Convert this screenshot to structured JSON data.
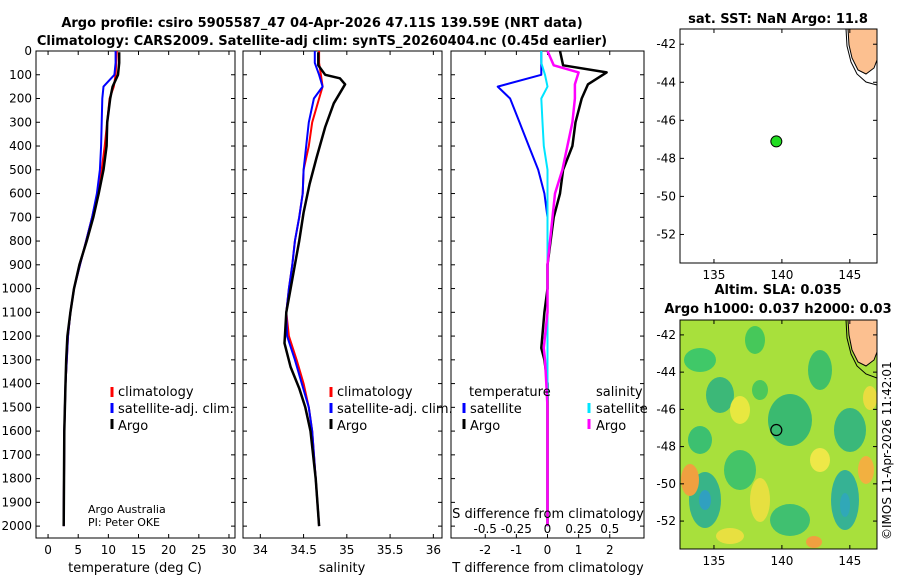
{
  "title_line1": "Argo profile: csiro 5905587_47 04-Apr-2026 47.11S 139.59E (NRT data)",
  "title_line2": "Climatology: CARS2009. Satellite-adj clim: synTS_20260404.nc (0.45d earlier)",
  "credit_line1": "Argo Australia",
  "credit_line2": "PI: Peter OKE",
  "watermark": "©IMOS 11-Apr-2026 11:42:01",
  "colors": {
    "climatology": "#ff0000",
    "satellite": "#0000ff",
    "argo": "#000000",
    "salinity_sat": "#00e5ff",
    "salinity_argo": "#ff00ff"
  },
  "chart_data": [
    {
      "type": "line",
      "id": "temperature",
      "xlabel": "temperature (deg C)",
      "ylabel": "",
      "xlim": [
        -2,
        31
      ],
      "ylim": [
        2050,
        0
      ],
      "xticks": [
        0,
        5,
        10,
        15,
        20,
        25,
        30
      ],
      "yticks": [
        0,
        100,
        200,
        300,
        400,
        500,
        600,
        700,
        800,
        900,
        1000,
        1100,
        1200,
        1300,
        1400,
        1500,
        1600,
        1700,
        1800,
        1900,
        2000
      ],
      "legend": [
        "climatology",
        "satellite-adj. clim.",
        "Argo"
      ],
      "series": [
        {
          "name": "climatology",
          "color": "#ff0000",
          "x": [
            11.4,
            11.3,
            11.2,
            10.9,
            10.2,
            9.8,
            9.4,
            8.9,
            8.2,
            7.3,
            6.3,
            5.3,
            4.3,
            3.7,
            3.3,
            3.1,
            2.9,
            2.8,
            2.7,
            2.65,
            2.6
          ],
          "y": [
            0,
            50,
            100,
            150,
            200,
            300,
            400,
            500,
            600,
            700,
            800,
            900,
            1000,
            1100,
            1200,
            1300,
            1400,
            1500,
            1600,
            1800,
            2000
          ]
        },
        {
          "name": "satellite-adj. clim.",
          "color": "#0000ff",
          "x": [
            11.2,
            11.2,
            11.0,
            9.2,
            9.0,
            8.9,
            8.8,
            8.6,
            8.1,
            7.3,
            6.3,
            5.3,
            4.3,
            3.7,
            3.3,
            3.1,
            2.9,
            2.8,
            2.7,
            2.65,
            2.6
          ],
          "y": [
            0,
            50,
            100,
            150,
            200,
            300,
            400,
            500,
            600,
            700,
            800,
            900,
            1000,
            1100,
            1200,
            1300,
            1400,
            1500,
            1600,
            1800,
            2000
          ]
        },
        {
          "name": "Argo",
          "color": "#000000",
          "x": [
            11.8,
            11.8,
            11.6,
            10.7,
            10.3,
            9.8,
            9.7,
            9.2,
            8.4,
            7.5,
            6.4,
            5.2,
            4.3,
            3.7,
            3.2,
            3.0,
            2.9,
            2.8,
            2.7,
            2.65,
            2.6
          ],
          "y": [
            5,
            50,
            100,
            150,
            200,
            300,
            400,
            500,
            600,
            700,
            800,
            900,
            1000,
            1100,
            1200,
            1300,
            1400,
            1500,
            1600,
            1800,
            2000
          ]
        }
      ]
    },
    {
      "type": "line",
      "id": "salinity",
      "xlabel": "salinity",
      "xlim": [
        33.8,
        36.1
      ],
      "ylim": [
        2050,
        0
      ],
      "xticks": [
        34,
        34.5,
        35,
        35.5,
        36
      ],
      "xticklabels": [
        "34",
        "34.5",
        "35",
        "35.5",
        "36"
      ],
      "legend": [
        "climatology",
        "satellite-adj. clim.",
        "Argo"
      ],
      "series": [
        {
          "name": "climatology",
          "color": "#ff0000",
          "x": [
            34.68,
            34.68,
            34.7,
            34.72,
            34.68,
            34.6,
            34.56,
            34.5,
            34.49,
            34.45,
            34.4,
            34.37,
            34.33,
            34.3,
            34.33,
            34.42,
            34.5,
            34.56,
            34.6,
            34.64,
            34.68
          ],
          "y": [
            0,
            50,
            100,
            150,
            200,
            300,
            400,
            500,
            600,
            700,
            800,
            900,
            1000,
            1100,
            1200,
            1300,
            1400,
            1500,
            1600,
            1800,
            2000
          ]
        },
        {
          "name": "satellite-adj. clim.",
          "color": "#0000ff",
          "x": [
            34.63,
            34.63,
            34.68,
            34.72,
            34.62,
            34.56,
            34.53,
            34.5,
            34.49,
            34.45,
            34.4,
            34.37,
            34.33,
            34.3,
            34.31,
            34.4,
            34.48,
            34.56,
            34.6,
            34.64,
            34.68
          ],
          "y": [
            0,
            50,
            100,
            150,
            200,
            300,
            400,
            500,
            600,
            700,
            800,
            900,
            1000,
            1100,
            1200,
            1300,
            1400,
            1500,
            1600,
            1800,
            2000
          ]
        },
        {
          "name": "Argo",
          "color": "#000000",
          "x": [
            34.67,
            34.67,
            34.75,
            34.92,
            34.98,
            34.85,
            34.75,
            34.65,
            34.57,
            34.5,
            34.45,
            34.4,
            34.35,
            34.3,
            34.28,
            34.35,
            34.45,
            34.52,
            34.58,
            34.64,
            34.68
          ],
          "y": [
            5,
            60,
            100,
            115,
            140,
            220,
            320,
            450,
            560,
            680,
            800,
            900,
            1000,
            1100,
            1230,
            1330,
            1420,
            1500,
            1600,
            1800,
            2000
          ]
        }
      ]
    },
    {
      "type": "line",
      "id": "difference",
      "xlabel": "T difference from climatology",
      "xlabel_top": "S difference from climatology",
      "xlim": [
        -3.1,
        3.1
      ],
      "ylim": [
        2050,
        0
      ],
      "xticks": [
        -2,
        -1,
        0,
        1,
        2
      ],
      "xticklabels": [
        "-2",
        "-1",
        "0",
        "1",
        "2"
      ],
      "secondary_ticklabels": [
        "-0.5",
        "-0.25",
        "0",
        "0.25",
        "0.5"
      ],
      "legend_temperature_title": "temperature",
      "legend_salinity_title": "salinity",
      "legend_temperature": [
        "satellite",
        "Argo"
      ],
      "legend_salinity": [
        "satellite",
        "Argo"
      ],
      "series": [
        {
          "name": "T satellite",
          "color": "#0000ff",
          "x": [
            -0.2,
            -0.2,
            -0.2,
            -1.6,
            -1.2,
            -0.9,
            -0.6,
            -0.3,
            -0.1,
            0.0,
            0.0,
            0.0,
            0.0,
            0.0,
            0.0,
            0.0,
            0.0,
            0.0,
            0.0,
            0.0,
            0.0
          ],
          "y": [
            0,
            50,
            100,
            150,
            200,
            300,
            400,
            500,
            600,
            700,
            800,
            900,
            1000,
            1100,
            1200,
            1300,
            1400,
            1500,
            1600,
            1800,
            2000
          ]
        },
        {
          "name": "T Argo",
          "color": "#000000",
          "x": [
            0.4,
            0.5,
            1.9,
            1.3,
            1.1,
            0.9,
            0.8,
            0.5,
            0.4,
            0.2,
            0.1,
            0.0,
            0.0,
            -0.1,
            -0.2,
            -0.1,
            0.0,
            0.0,
            0.0,
            0.0,
            0.0
          ],
          "y": [
            0,
            60,
            90,
            140,
            200,
            300,
            400,
            500,
            600,
            700,
            800,
            900,
            1000,
            1100,
            1250,
            1300,
            1400,
            1500,
            1600,
            1800,
            2000
          ]
        },
        {
          "name": "S satellite",
          "color": "#00e5ff",
          "x": [
            -0.05,
            -0.05,
            -0.02,
            0.0,
            -0.05,
            -0.04,
            -0.03,
            0.0,
            0.0,
            0.0,
            0.0,
            0.0,
            0.0,
            0.0,
            0.0,
            0.0,
            0.0,
            0.0,
            0.0,
            0.0,
            0.0
          ],
          "y": [
            0,
            50,
            100,
            150,
            200,
            300,
            400,
            500,
            600,
            700,
            800,
            900,
            1000,
            1100,
            1200,
            1300,
            1400,
            1500,
            1600,
            1800,
            2000
          ]
        },
        {
          "name": "S Argo",
          "color": "#ff00ff",
          "x": [
            0.0,
            0.05,
            0.25,
            0.22,
            0.22,
            0.2,
            0.16,
            0.12,
            0.06,
            0.04,
            0.02,
            0.0,
            0.0,
            0.0,
            -0.03,
            -0.02,
            -0.01,
            0.0,
            0.0,
            0.0,
            0.0
          ],
          "y": [
            0,
            60,
            90,
            140,
            200,
            300,
            400,
            500,
            600,
            700,
            800,
            900,
            1000,
            1100,
            1250,
            1300,
            1400,
            1500,
            1600,
            1800,
            2000
          ]
        }
      ]
    },
    {
      "type": "scatter",
      "id": "sst_map",
      "title": "sat. SST: NaN Argo: 11.8",
      "xlim": [
        132.5,
        147
      ],
      "ylim": [
        -53.5,
        -41.2
      ],
      "xticks": [
        135,
        140,
        145
      ],
      "yticks": [
        -42,
        -44,
        -46,
        -48,
        -50,
        -52
      ],
      "points": [
        {
          "lon": 139.59,
          "lat": -47.11,
          "color": "#22dd22"
        }
      ]
    },
    {
      "type": "heatmap",
      "id": "sla_map",
      "title_line1": "Altim. SLA: 0.035",
      "title_line2": "Argo h1000: 0.037 h2000: 0.03",
      "xlim": [
        132.5,
        147
      ],
      "ylim": [
        -53.5,
        -41.2
      ],
      "xticks": [
        135,
        140,
        145
      ],
      "yticks": [
        -42,
        -44,
        -46,
        -48,
        -50,
        -52
      ],
      "points": [
        {
          "lon": 139.59,
          "lat": -47.11
        }
      ]
    }
  ]
}
